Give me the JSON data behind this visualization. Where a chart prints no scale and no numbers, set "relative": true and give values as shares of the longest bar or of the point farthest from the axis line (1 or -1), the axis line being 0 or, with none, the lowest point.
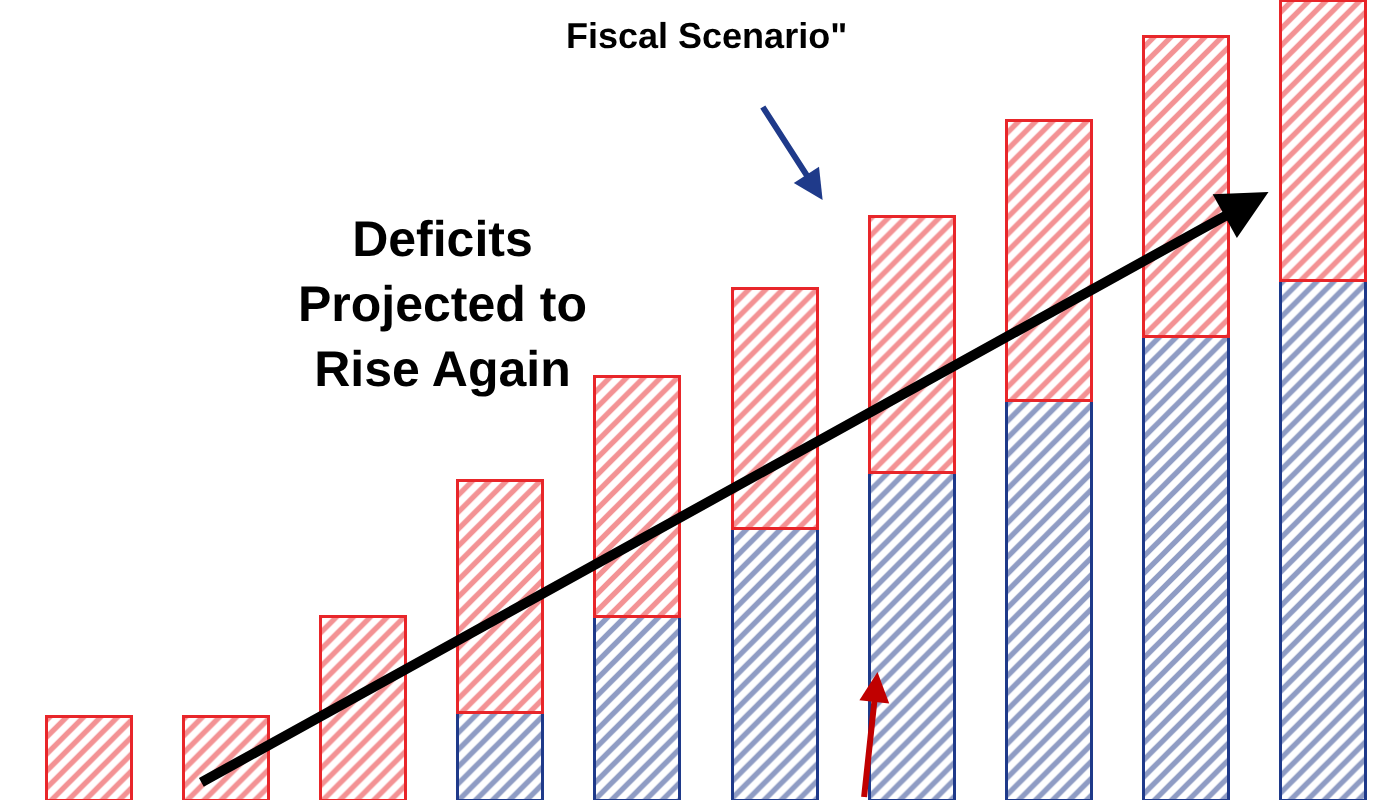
{
  "chart_data": {
    "type": "bar",
    "stacked": true,
    "relative": true,
    "categories": [
      null,
      null,
      null,
      null,
      null,
      null,
      null,
      null,
      null,
      null
    ],
    "series": [
      {
        "color": "#1f3a8a",
        "values": [
          0,
          0,
          0,
          0.11,
          0.23,
          0.34,
          0.41,
          0.5,
          0.58,
          0.65
        ]
      },
      {
        "color": "#e8262a",
        "values": [
          0.105,
          0.105,
          0.23,
          0.29,
          0.3,
          0.3,
          0.32,
          0.35,
          0.375,
          0.35
        ]
      }
    ],
    "annotations": [
      "Fiscal Scenario\"",
      "Deficits\nProjected to\nRise Again"
    ]
  }
}
